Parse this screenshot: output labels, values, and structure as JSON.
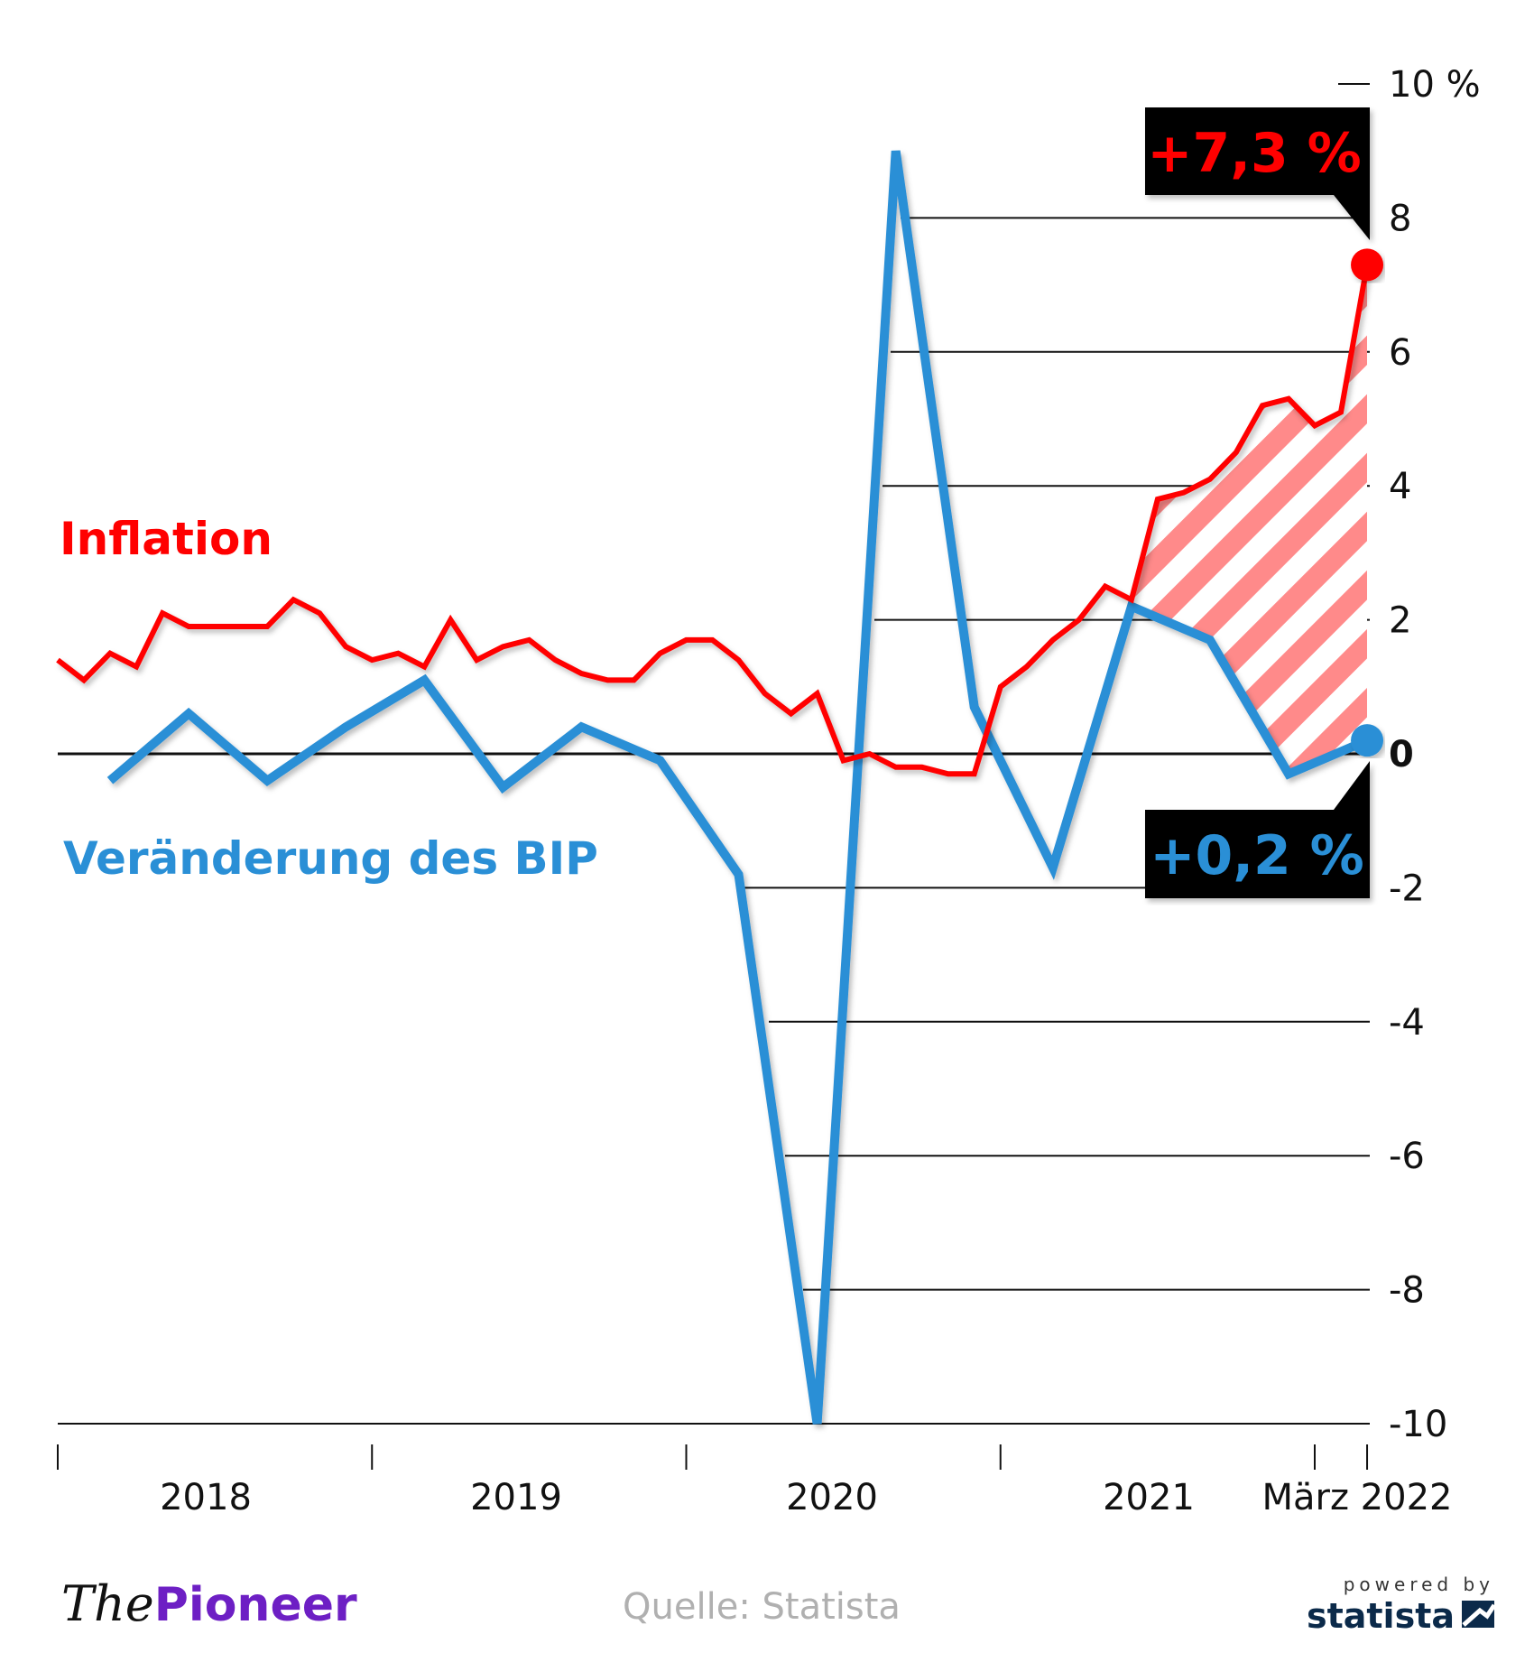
{
  "chart_data": {
    "type": "line",
    "title": "",
    "ylabel": "",
    "xlabel": "",
    "ylim": [
      -10,
      10
    ],
    "y_ticks": [
      "10 %",
      "8",
      "6",
      "4",
      "2",
      "0",
      "-2",
      "-4",
      "-6",
      "-8",
      "-10"
    ],
    "y_tick_values": [
      10,
      8,
      6,
      4,
      2,
      0,
      -2,
      -4,
      -6,
      -8,
      -10
    ],
    "x_tick_labels": [
      "2018",
      "2019",
      "2020",
      "2021",
      "März 2022"
    ],
    "grid": true,
    "colors": {
      "inflation": "#ff0000",
      "gdp": "#2a8fd6",
      "hatch": "#ff8a8a",
      "callout_bg": "#000000"
    },
    "series": [
      {
        "name": "Inflation",
        "x": [
          "2018-01",
          "2018-02",
          "2018-03",
          "2018-04",
          "2018-05",
          "2018-06",
          "2018-07",
          "2018-08",
          "2018-09",
          "2018-10",
          "2018-11",
          "2018-12",
          "2019-01",
          "2019-02",
          "2019-03",
          "2019-04",
          "2019-05",
          "2019-06",
          "2019-07",
          "2019-08",
          "2019-09",
          "2019-10",
          "2019-11",
          "2019-12",
          "2020-01",
          "2020-02",
          "2020-03",
          "2020-04",
          "2020-05",
          "2020-06",
          "2020-07",
          "2020-08",
          "2020-09",
          "2020-10",
          "2020-11",
          "2020-12",
          "2021-01",
          "2021-02",
          "2021-03",
          "2021-04",
          "2021-05",
          "2021-06",
          "2021-07",
          "2021-08",
          "2021-09",
          "2021-10",
          "2021-11",
          "2021-12",
          "2022-01",
          "2022-02",
          "2022-03"
        ],
        "values": [
          1.4,
          1.1,
          1.5,
          1.3,
          2.1,
          1.9,
          1.9,
          1.9,
          1.9,
          2.3,
          2.1,
          1.6,
          1.4,
          1.5,
          1.3,
          2.0,
          1.4,
          1.6,
          1.7,
          1.4,
          1.2,
          1.1,
          1.1,
          1.5,
          1.7,
          1.7,
          1.4,
          0.9,
          0.6,
          0.9,
          -0.1,
          0.0,
          -0.2,
          -0.2,
          -0.3,
          -0.3,
          1.0,
          1.3,
          1.7,
          2.0,
          2.5,
          2.3,
          3.8,
          3.9,
          4.1,
          4.5,
          5.2,
          5.3,
          4.9,
          5.1,
          7.3
        ]
      },
      {
        "name": "Veränderung des BIP",
        "x": [
          "2018-03",
          "2018-06",
          "2018-09",
          "2018-12",
          "2019-03",
          "2019-06",
          "2019-09",
          "2019-12",
          "2020-03",
          "2020-06",
          "2020-09",
          "2020-12",
          "2021-03",
          "2021-06",
          "2021-09",
          "2021-12",
          "2022-03"
        ],
        "values": [
          -0.4,
          0.6,
          -0.4,
          0.4,
          1.1,
          -0.5,
          0.4,
          -0.1,
          -1.8,
          -10.0,
          9.0,
          0.7,
          -1.7,
          2.2,
          1.7,
          -0.3,
          0.2
        ]
      }
    ],
    "annotations": {
      "inflation_callout": "+7,3 %",
      "gdp_callout": "+0,2 %",
      "hatched_region": "between Inflation and BIP, 2021-06 to 2022-03"
    }
  },
  "labels": {
    "inflation": "Inflation",
    "gdp": "Veränderung des BIP"
  },
  "footer": {
    "source": "Quelle: Statista",
    "logo_the": "The",
    "logo_pioneer": "Pioneer",
    "powered_by": "powered by",
    "statista": "statista"
  }
}
